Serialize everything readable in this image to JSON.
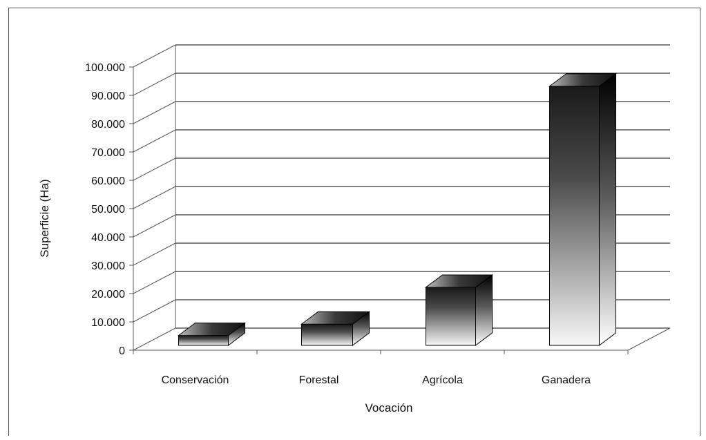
{
  "chart_data": {
    "type": "bar",
    "style": "3d-column-gradient",
    "categories": [
      "Conservación",
      "Forestal",
      "Agrícola",
      "Ganadera"
    ],
    "values": [
      3500,
      7500,
      20500,
      91500
    ],
    "xlabel": "Vocación",
    "ylabel": "Superficie (Ha)",
    "ylim": [
      0,
      100000
    ],
    "yticks": [
      "0",
      "10.000",
      "20.000",
      "30.000",
      "40.000",
      "50.000",
      "60.000",
      "70.000",
      "80.000",
      "90.000",
      "100.000"
    ],
    "grid": true,
    "legend": "none",
    "colors": {
      "bar_dark": "#1a1a1a",
      "bar_light": "#f7f7f7",
      "grid": "#000000",
      "axis": "#555555"
    }
  }
}
